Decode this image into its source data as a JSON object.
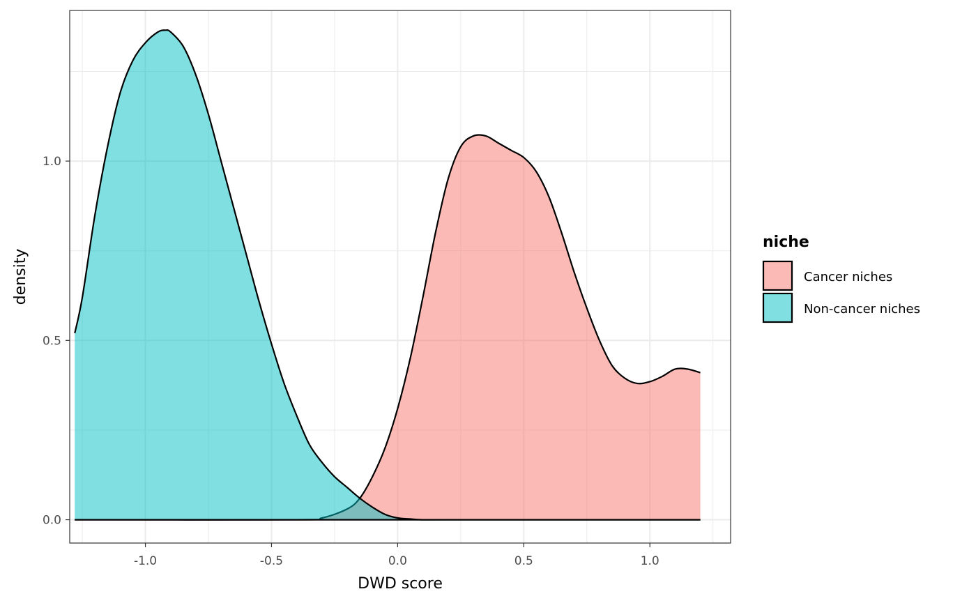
{
  "chart_data": {
    "type": "area",
    "subtype": "density",
    "xlabel": "DWD score",
    "ylabel": "density",
    "xlim": [
      -1.3,
      1.32
    ],
    "ylim": [
      -0.065,
      1.42
    ],
    "x_ticks": [
      -1.0,
      -0.5,
      0.0,
      0.5,
      1.0
    ],
    "x_tick_labels": [
      "-1.0",
      "-0.5",
      "0.0",
      "0.5",
      "1.0"
    ],
    "y_ticks": [
      0.0,
      0.5,
      1.0
    ],
    "y_tick_labels": [
      "0.0",
      "0.5",
      "1.0"
    ],
    "grid": true,
    "legend": {
      "title": "niche",
      "position": "right"
    },
    "series": [
      {
        "name": "Cancer niches",
        "color": "#F8766D",
        "fill_opacity": 0.5,
        "x": [
          -1.28,
          -0.4,
          -0.3,
          -0.2,
          -0.15,
          -0.1,
          -0.05,
          0.0,
          0.05,
          0.1,
          0.15,
          0.2,
          0.25,
          0.3,
          0.35,
          0.4,
          0.45,
          0.5,
          0.55,
          0.6,
          0.65,
          0.7,
          0.75,
          0.8,
          0.85,
          0.9,
          0.95,
          1.0,
          1.05,
          1.1,
          1.15,
          1.2
        ],
        "values": [
          0.0,
          0.0,
          0.005,
          0.03,
          0.06,
          0.12,
          0.2,
          0.31,
          0.45,
          0.62,
          0.8,
          0.95,
          1.04,
          1.07,
          1.07,
          1.05,
          1.03,
          1.01,
          0.97,
          0.9,
          0.8,
          0.69,
          0.59,
          0.5,
          0.43,
          0.395,
          0.38,
          0.385,
          0.4,
          0.42,
          0.42,
          0.41
        ]
      },
      {
        "name": "Non-cancer niches",
        "color": "#00BFC4",
        "fill_opacity": 0.5,
        "x": [
          -1.28,
          -1.25,
          -1.2,
          -1.15,
          -1.1,
          -1.05,
          -1.0,
          -0.95,
          -0.92,
          -0.9,
          -0.85,
          -0.8,
          -0.75,
          -0.7,
          -0.65,
          -0.6,
          -0.55,
          -0.5,
          -0.45,
          -0.4,
          -0.35,
          -0.3,
          -0.25,
          -0.2,
          -0.15,
          -0.1,
          -0.05,
          0.0,
          0.05,
          0.1,
          0.2,
          1.2
        ],
        "values": [
          0.52,
          0.62,
          0.85,
          1.04,
          1.19,
          1.28,
          1.33,
          1.36,
          1.365,
          1.36,
          1.32,
          1.24,
          1.13,
          1.0,
          0.87,
          0.74,
          0.61,
          0.49,
          0.38,
          0.29,
          0.21,
          0.16,
          0.12,
          0.09,
          0.06,
          0.035,
          0.015,
          0.005,
          0.002,
          0.0,
          0.0,
          0.0
        ]
      }
    ]
  }
}
